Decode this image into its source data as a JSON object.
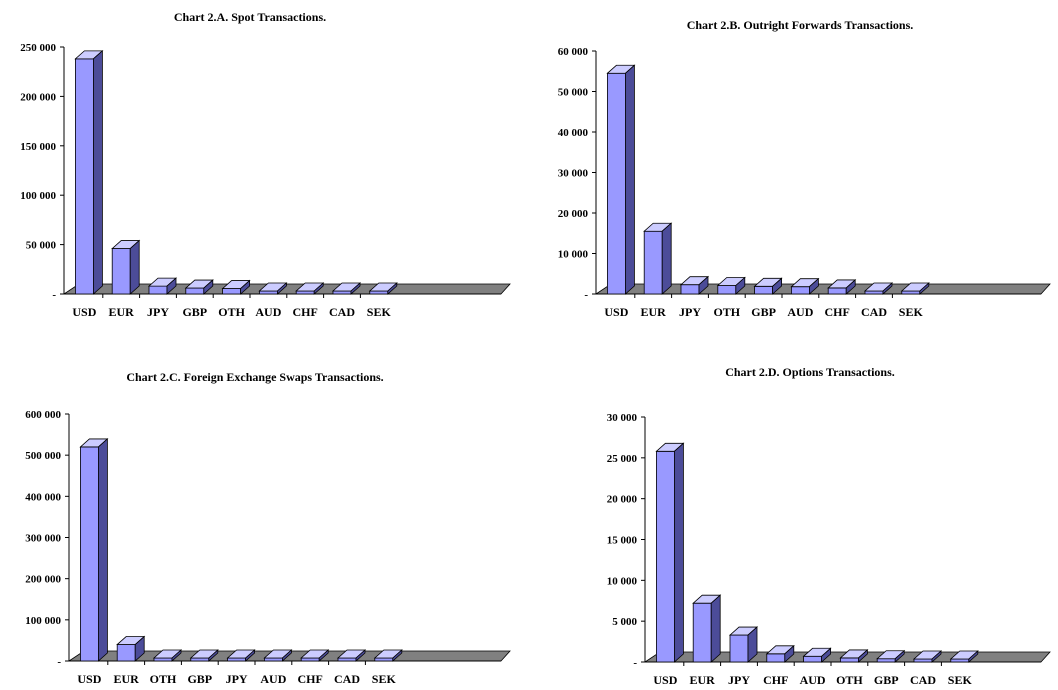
{
  "colors": {
    "bar_front": "#9999ff",
    "bar_top": "#ccccff",
    "bar_side": "#4c4c99",
    "bar_edge": "#000000",
    "floor": "#808080",
    "axis": "#000000",
    "text": "#000000"
  },
  "chart_data": [
    {
      "type": "bar",
      "title": "Chart 2.A. Spot Transactions.",
      "xlabel": "",
      "ylabel": "",
      "categories": [
        "USD",
        "EUR",
        "JPY",
        "GBP",
        "OTH",
        "AUD",
        "CHF",
        "CAD",
        "SEK"
      ],
      "values": [
        238000,
        46000,
        8000,
        6000,
        5500,
        3000,
        2000,
        1000,
        300
      ],
      "ylim": [
        0,
        250000
      ],
      "yticks": [
        0,
        50000,
        100000,
        150000,
        200000,
        250000
      ],
      "ytick_labels": [
        "-",
        "50 000",
        "100 000",
        "150 000",
        "200 000",
        "250 000"
      ],
      "grid": false,
      "legend": "none",
      "style": "3d"
    },
    {
      "type": "bar",
      "title": "Chart 2.B. Outright Forwards Transactions.",
      "xlabel": "",
      "ylabel": "",
      "categories": [
        "USD",
        "EUR",
        "JPY",
        "OTH",
        "GBP",
        "AUD",
        "CHF",
        "CAD",
        "SEK"
      ],
      "values": [
        54500,
        15500,
        2300,
        2100,
        1900,
        1800,
        1500,
        700,
        600
      ],
      "ylim": [
        0,
        60000
      ],
      "yticks": [
        0,
        10000,
        20000,
        30000,
        40000,
        50000,
        60000
      ],
      "ytick_labels": [
        "-",
        "10 000",
        "20 000",
        "30 000",
        "40 000",
        "50 000",
        "60 000"
      ],
      "grid": false,
      "legend": "none",
      "style": "3d"
    },
    {
      "type": "bar",
      "title": "Chart 2.C. Foreign Exchange Swaps Transactions.",
      "xlabel": "",
      "ylabel": "",
      "categories": [
        "USD",
        "EUR",
        "OTH",
        "GBP",
        "JPY",
        "AUD",
        "CHF",
        "CAD",
        "SEK"
      ],
      "values": [
        520000,
        40000,
        4000,
        3000,
        2500,
        1500,
        1000,
        800,
        500
      ],
      "ylim": [
        0,
        600000
      ],
      "yticks": [
        0,
        100000,
        200000,
        300000,
        400000,
        500000,
        600000
      ],
      "ytick_labels": [
        "-",
        "100 000",
        "200 000",
        "300 000",
        "400 000",
        "500 000",
        "600 000"
      ],
      "grid": false,
      "legend": "none",
      "style": "3d"
    },
    {
      "type": "bar",
      "title": "Chart 2.D. Options Transactions.",
      "xlabel": "",
      "ylabel": "",
      "categories": [
        "USD",
        "EUR",
        "JPY",
        "CHF",
        "AUD",
        "OTH",
        "GBP",
        "CAD",
        "SEK"
      ],
      "values": [
        25800,
        7200,
        3300,
        1000,
        700,
        500,
        400,
        200,
        100
      ],
      "ylim": [
        0,
        30000
      ],
      "yticks": [
        0,
        5000,
        10000,
        15000,
        20000,
        25000,
        30000
      ],
      "ytick_labels": [
        "-",
        "5 000",
        "10 000",
        "15 000",
        "20 000",
        "25 000",
        "30 000"
      ],
      "grid": false,
      "legend": "none",
      "style": "3d"
    }
  ]
}
